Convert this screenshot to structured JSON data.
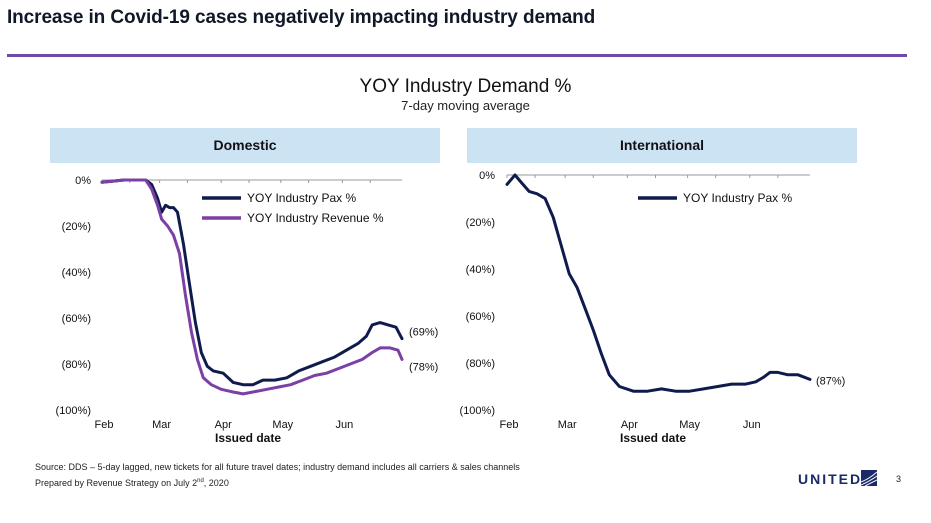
{
  "slide": {
    "title": "Increase in Covid-19 cases negatively impacting industry demand",
    "page_number": "3",
    "brand": "UNITED",
    "accent_color": "#6f48a8"
  },
  "footnotes": {
    "source": "Source: DDS – 5-day lagged, new tickets for all future travel dates; industry demand includes all carriers & sales channels",
    "prepared_prefix": "Prepared by Revenue Strategy on July 2",
    "prepared_sup": "nd",
    "prepared_suffix": ", 2020"
  },
  "chart_data": [
    {
      "type": "line",
      "title": "YOY Industry Demand %",
      "subtitle": "7-day moving average",
      "panel": "Domestic",
      "xlabel": "Issued date",
      "x_ticks": [
        "Feb",
        "Mar",
        "Apr",
        "May",
        "Jun"
      ],
      "y_ticks": [
        "0%",
        "(20%)",
        "(40%)",
        "(60%)",
        "(80%)",
        "(100%)"
      ],
      "ylim": [
        -100,
        0
      ],
      "legend_position": "top-right",
      "series": [
        {
          "name": "YOY Industry Pax %",
          "color": "#0f1b4c",
          "end_label": "(69%)",
          "points": [
            [
              "2020-02-01",
              -1
            ],
            [
              "2020-02-06",
              -0.5
            ],
            [
              "2020-02-12",
              0
            ],
            [
              "2020-02-18",
              0
            ],
            [
              "2020-02-23",
              0
            ],
            [
              "2020-02-26",
              -2
            ],
            [
              "2020-02-29",
              -8
            ],
            [
              "2020-03-02",
              -14
            ],
            [
              "2020-03-04",
              -11
            ],
            [
              "2020-03-06",
              -12
            ],
            [
              "2020-03-08",
              -12
            ],
            [
              "2020-03-10",
              -14
            ],
            [
              "2020-03-13",
              -28
            ],
            [
              "2020-03-16",
              -45
            ],
            [
              "2020-03-19",
              -62
            ],
            [
              "2020-03-22",
              -75
            ],
            [
              "2020-03-25",
              -81
            ],
            [
              "2020-03-28",
              -83
            ],
            [
              "2020-04-02",
              -84
            ],
            [
              "2020-04-07",
              -88
            ],
            [
              "2020-04-12",
              -89
            ],
            [
              "2020-04-17",
              -89
            ],
            [
              "2020-04-22",
              -87
            ],
            [
              "2020-04-28",
              -87
            ],
            [
              "2020-05-04",
              -86
            ],
            [
              "2020-05-10",
              -83
            ],
            [
              "2020-05-16",
              -81
            ],
            [
              "2020-05-22",
              -79
            ],
            [
              "2020-05-28",
              -77
            ],
            [
              "2020-06-03",
              -74
            ],
            [
              "2020-06-09",
              -71
            ],
            [
              "2020-06-13",
              -68
            ],
            [
              "2020-06-16",
              -63
            ],
            [
              "2020-06-20",
              -62
            ],
            [
              "2020-06-24",
              -63
            ],
            [
              "2020-06-28",
              -64
            ],
            [
              "2020-07-01",
              -69
            ]
          ]
        },
        {
          "name": "YOY Industry Revenue %",
          "color": "#7b3fa6",
          "end_label": "(78%)",
          "points": [
            [
              "2020-02-01",
              -1
            ],
            [
              "2020-02-06",
              -0.5
            ],
            [
              "2020-02-12",
              0
            ],
            [
              "2020-02-18",
              0
            ],
            [
              "2020-02-23",
              0
            ],
            [
              "2020-02-26",
              -4
            ],
            [
              "2020-02-29",
              -11
            ],
            [
              "2020-03-02",
              -17
            ],
            [
              "2020-03-05",
              -20
            ],
            [
              "2020-03-08",
              -24
            ],
            [
              "2020-03-11",
              -32
            ],
            [
              "2020-03-14",
              -50
            ],
            [
              "2020-03-17",
              -66
            ],
            [
              "2020-03-20",
              -78
            ],
            [
              "2020-03-23",
              -86
            ],
            [
              "2020-03-27",
              -89
            ],
            [
              "2020-04-01",
              -91
            ],
            [
              "2020-04-06",
              -92
            ],
            [
              "2020-04-12",
              -93
            ],
            [
              "2020-04-18",
              -92
            ],
            [
              "2020-04-24",
              -91
            ],
            [
              "2020-04-30",
              -90
            ],
            [
              "2020-05-06",
              -89
            ],
            [
              "2020-05-12",
              -87
            ],
            [
              "2020-05-18",
              -85
            ],
            [
              "2020-05-24",
              -84
            ],
            [
              "2020-05-30",
              -82
            ],
            [
              "2020-06-05",
              -80
            ],
            [
              "2020-06-11",
              -78
            ],
            [
              "2020-06-16",
              -75
            ],
            [
              "2020-06-20",
              -73
            ],
            [
              "2020-06-25",
              -73
            ],
            [
              "2020-06-29",
              -74
            ],
            [
              "2020-07-01",
              -78
            ]
          ]
        }
      ]
    },
    {
      "type": "line",
      "panel": "International",
      "xlabel": "Issued date",
      "x_ticks": [
        "Feb",
        "Mar",
        "Apr",
        "May",
        "Jun"
      ],
      "y_ticks": [
        "0%",
        "(20%)",
        "(40%)",
        "(60%)",
        "(80%)",
        "(100%)"
      ],
      "ylim": [
        -100,
        0
      ],
      "legend_position": "top-right",
      "series": [
        {
          "name": "YOY Industry Pax %",
          "color": "#0f1b4c",
          "end_label": "(87%)",
          "points": [
            [
              "2020-02-01",
              -4
            ],
            [
              "2020-02-03",
              -2
            ],
            [
              "2020-02-05",
              0
            ],
            [
              "2020-02-08",
              -3
            ],
            [
              "2020-02-12",
              -7
            ],
            [
              "2020-02-16",
              -8
            ],
            [
              "2020-02-20",
              -10
            ],
            [
              "2020-02-24",
              -18
            ],
            [
              "2020-02-28",
              -30
            ],
            [
              "2020-03-03",
              -42
            ],
            [
              "2020-03-07",
              -48
            ],
            [
              "2020-03-11",
              -57
            ],
            [
              "2020-03-15",
              -66
            ],
            [
              "2020-03-19",
              -76
            ],
            [
              "2020-03-23",
              -85
            ],
            [
              "2020-03-28",
              -90
            ],
            [
              "2020-04-04",
              -92
            ],
            [
              "2020-04-11",
              -92
            ],
            [
              "2020-04-18",
              -91
            ],
            [
              "2020-04-25",
              -92
            ],
            [
              "2020-05-02",
              -92
            ],
            [
              "2020-05-09",
              -91
            ],
            [
              "2020-05-16",
              -90
            ],
            [
              "2020-05-23",
              -89
            ],
            [
              "2020-05-30",
              -89
            ],
            [
              "2020-06-04",
              -88
            ],
            [
              "2020-06-08",
              -86
            ],
            [
              "2020-06-11",
              -84
            ],
            [
              "2020-06-15",
              -84
            ],
            [
              "2020-06-20",
              -85
            ],
            [
              "2020-06-25",
              -85
            ],
            [
              "2020-07-01",
              -87
            ]
          ]
        }
      ]
    }
  ]
}
